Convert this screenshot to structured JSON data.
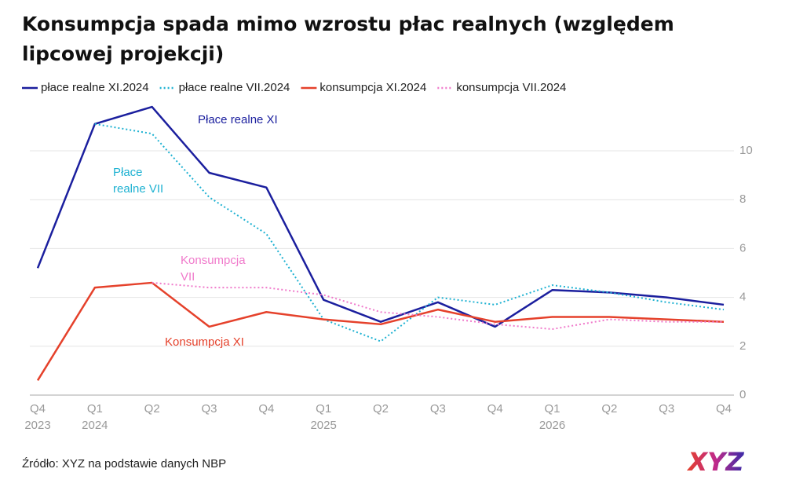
{
  "chart_data": {
    "type": "line",
    "title_lines": [
      "Konsumpcja spada mimo wzrostu płac realnych (względem",
      "lipcowej projekcji)"
    ],
    "categories": [
      "Q4 2023",
      "Q1 2024",
      "Q2",
      "Q3",
      "Q4",
      "Q1 2025",
      "Q2",
      "Q3",
      "Q4",
      "Q1 2026",
      "Q2",
      "Q3",
      "Q4"
    ],
    "series": [
      {
        "name": "płace realne XI.2024",
        "color": "#1b1f9e",
        "dotted": false,
        "values": [
          5.2,
          11.1,
          11.8,
          9.1,
          8.5,
          3.9,
          3.0,
          3.8,
          2.8,
          4.3,
          4.2,
          4.0,
          3.7
        ]
      },
      {
        "name": "płace realne VII.2024",
        "color": "#1fb2d2",
        "dotted": true,
        "values": [
          null,
          11.1,
          10.7,
          8.1,
          6.6,
          3.1,
          2.2,
          4.0,
          3.7,
          4.5,
          4.2,
          3.8,
          3.5
        ]
      },
      {
        "name": "konsumpcja XI.2024",
        "color": "#e5412b",
        "dotted": false,
        "values": [
          0.6,
          4.4,
          4.6,
          2.8,
          3.4,
          3.1,
          2.9,
          3.5,
          3.0,
          3.2,
          3.2,
          3.1,
          3.0
        ]
      },
      {
        "name": "konsumpcja VII.2024",
        "color": "#f07acb",
        "dotted": true,
        "values": [
          null,
          null,
          4.6,
          4.4,
          4.4,
          4.1,
          3.4,
          3.2,
          2.9,
          2.7,
          3.1,
          3.0,
          3.0
        ]
      }
    ],
    "annotations": [
      {
        "lines": [
          "Płace realne XI"
        ],
        "color": "#1b1f9e"
      },
      {
        "lines": [
          "Płace",
          "realne VII"
        ],
        "color": "#1fb2d2"
      },
      {
        "lines": [
          "Konsumpcja",
          "VII"
        ],
        "color": "#f07acb"
      },
      {
        "lines": [
          "Konsumpcja XI"
        ],
        "color": "#e5412b"
      }
    ],
    "ylim": [
      0,
      12
    ],
    "yticks": [
      0,
      2,
      4,
      6,
      8,
      10
    ],
    "grid": true,
    "source": "Źródło: XYZ na podstawie danych NBP",
    "logo": "XYZ"
  }
}
